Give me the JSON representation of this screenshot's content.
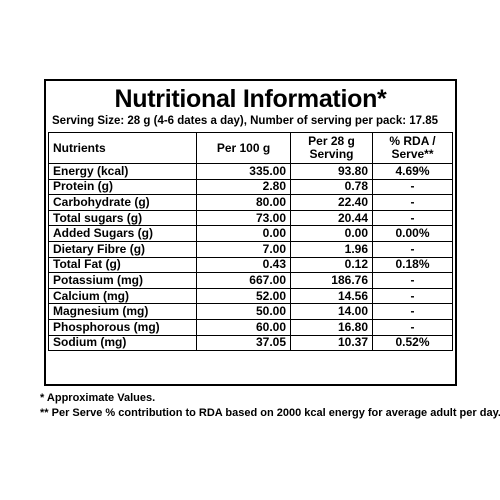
{
  "title": "Nutritional Information*",
  "serving": "Serving Size: 28 g (4-6 dates a day), Number of serving per pack: 17.85",
  "headers": {
    "nutrients": "Nutrients",
    "per100": "Per 100 g",
    "per28_l1": "Per 28 g",
    "per28_l2": "Serving",
    "rda_l1": "% RDA /",
    "rda_l2": "Serve**"
  },
  "rows": [
    {
      "name": "Energy (kcal)",
      "per100": "335.00",
      "per28": "93.80",
      "rda": "4.69%"
    },
    {
      "name": "Protein (g)",
      "per100": "2.80",
      "per28": "0.78",
      "rda": "-"
    },
    {
      "name": "Carbohydrate (g)",
      "per100": "80.00",
      "per28": "22.40",
      "rda": "-"
    },
    {
      "name": "Total sugars (g)",
      "per100": "73.00",
      "per28": "20.44",
      "rda": "-"
    },
    {
      "name": "Added Sugars (g)",
      "per100": "0.00",
      "per28": "0.00",
      "rda": "0.00%"
    },
    {
      "name": "Dietary Fibre (g)",
      "per100": "7.00",
      "per28": "1.96",
      "rda": "-"
    },
    {
      "name": "Total Fat (g)",
      "per100": "0.43",
      "per28": "0.12",
      "rda": "0.18%"
    },
    {
      "name": "Potassium (mg)",
      "per100": "667.00",
      "per28": "186.76",
      "rda": "-"
    },
    {
      "name": "Calcium (mg)",
      "per100": "52.00",
      "per28": "14.56",
      "rda": "-"
    },
    {
      "name": "Magnesium (mg)",
      "per100": "50.00",
      "per28": "14.00",
      "rda": "-"
    },
    {
      "name": "Phosphorous (mg)",
      "per100": "60.00",
      "per28": "16.80",
      "rda": "-"
    },
    {
      "name": "Sodium (mg)",
      "per100": "37.05",
      "per28": "10.37",
      "rda": "0.52%"
    }
  ],
  "notes": [
    "*  Approximate Values.",
    "** Per Serve % contribution to RDA based on 2000 kcal energy for average adult per day."
  ]
}
